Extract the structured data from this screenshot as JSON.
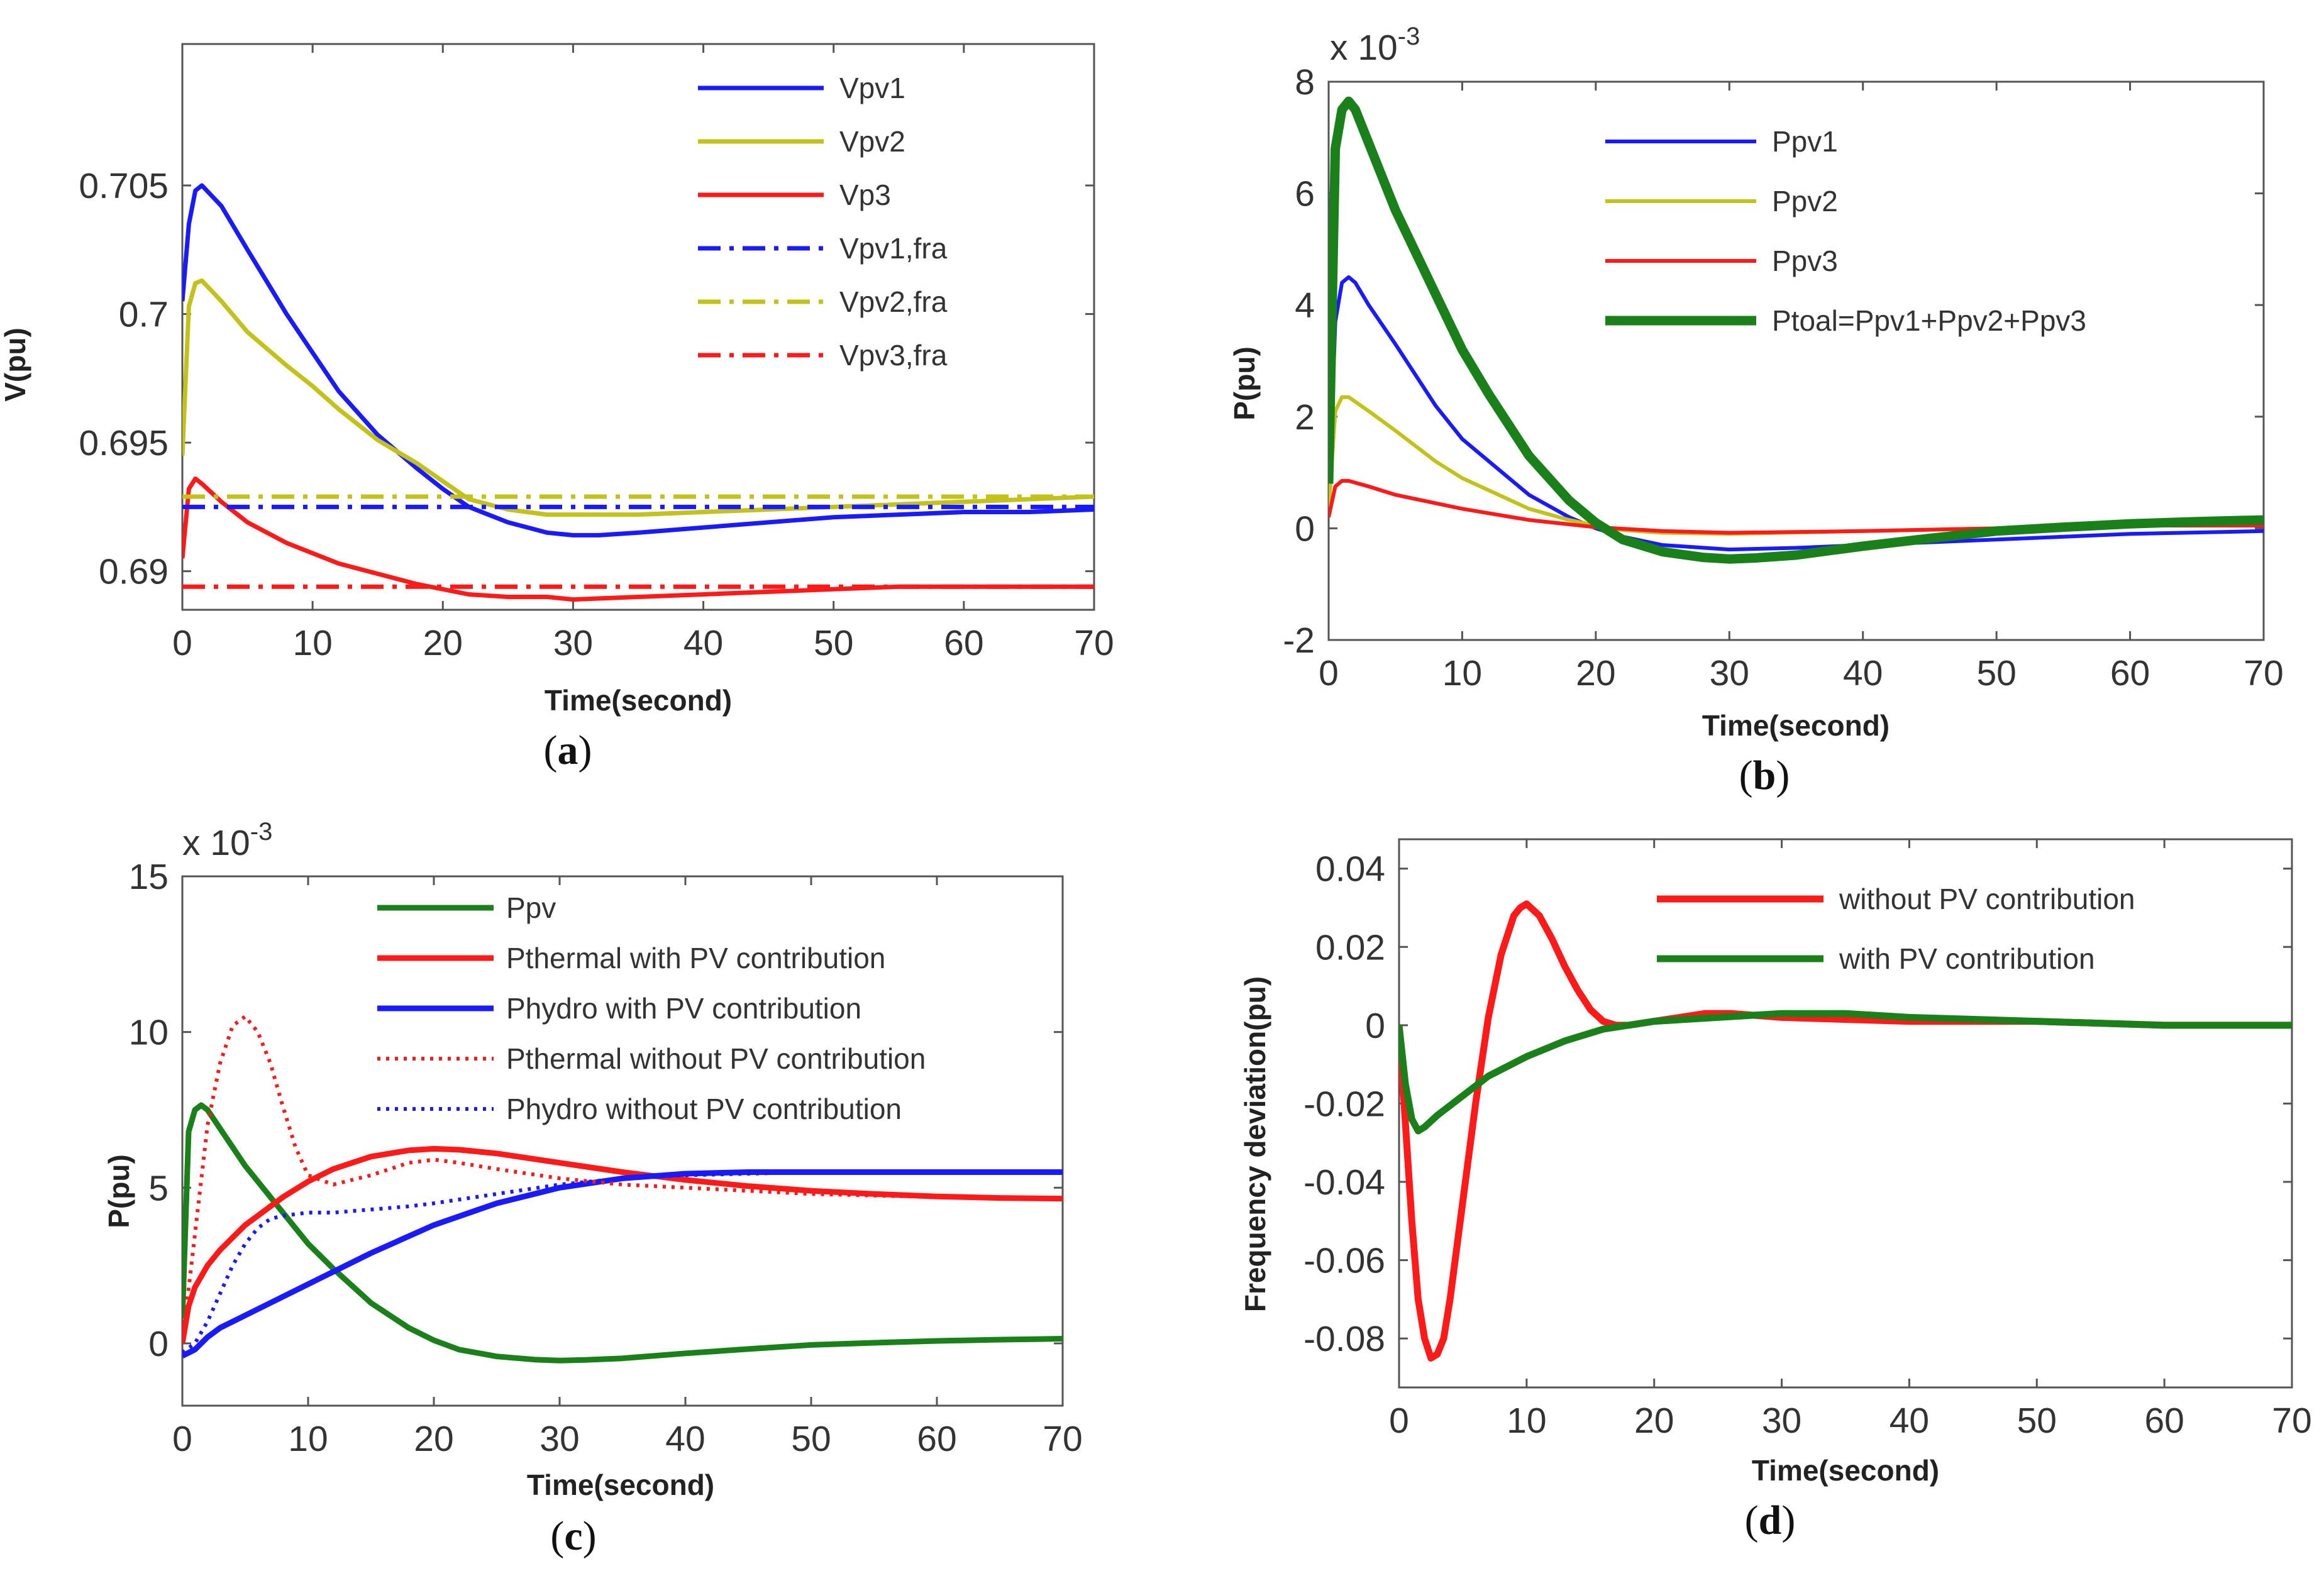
{
  "colors": {
    "blue": "#1a1aff",
    "yellow": "#c2c21a",
    "red": "#ff1a1a",
    "green": "#1a801a"
  },
  "chart_data": [
    {
      "id": "a",
      "type": "line",
      "caption": {
        "pre": "(",
        "letter": "a",
        "post": ")"
      },
      "xlabel": "Time(second)",
      "ylabel": "V(pu)",
      "xlim": [
        0,
        70
      ],
      "ylim": [
        0.6885,
        0.7105
      ],
      "exponent": "",
      "xticks": [
        "0",
        "10",
        "20",
        "30",
        "40",
        "50",
        "60",
        "70"
      ],
      "yticks": [
        {
          "v": 0.69,
          "label": "0.69"
        },
        {
          "v": 0.695,
          "label": "0.695"
        },
        {
          "v": 0.7,
          "label": "0.7"
        },
        {
          "v": 0.705,
          "label": "0.705"
        }
      ],
      "series": [
        {
          "name": "Vpv1",
          "color": "#1a1aff",
          "style": "solid",
          "width": 7,
          "x": [
            0,
            0.5,
            1,
            1.5,
            3,
            5,
            8,
            10,
            12,
            15,
            18,
            20,
            22,
            25,
            28,
            30,
            32,
            35,
            40,
            45,
            50,
            55,
            60,
            65,
            70
          ],
          "y": [
            0.7005,
            0.7035,
            0.7048,
            0.705,
            0.7042,
            0.7025,
            0.7,
            0.6985,
            0.697,
            0.6953,
            0.694,
            0.6932,
            0.6925,
            0.6919,
            0.6915,
            0.6914,
            0.6914,
            0.6915,
            0.6917,
            0.6919,
            0.6921,
            0.6922,
            0.6923,
            0.6923,
            0.6924
          ]
        },
        {
          "name": "Vpv2",
          "color": "#c2c21a",
          "style": "solid",
          "width": 7,
          "x": [
            0,
            0.5,
            1,
            1.5,
            3,
            5,
            8,
            10,
            12,
            15,
            18,
            20,
            22,
            25,
            28,
            30,
            35,
            40,
            45,
            50,
            55,
            60,
            65,
            70
          ],
          "y": [
            0.6945,
            0.7003,
            0.7012,
            0.7013,
            0.7005,
            0.6993,
            0.698,
            0.6972,
            0.6963,
            0.6951,
            0.6942,
            0.6935,
            0.6928,
            0.6924,
            0.6922,
            0.6922,
            0.6922,
            0.6923,
            0.6924,
            0.6925,
            0.6926,
            0.6927,
            0.6928,
            0.6929
          ]
        },
        {
          "name": "Vp3",
          "color": "#ff1a1a",
          "style": "solid",
          "width": 7,
          "x": [
            0,
            0.5,
            1,
            1.5,
            3,
            5,
            8,
            10,
            12,
            15,
            18,
            20,
            22,
            25,
            28,
            30,
            35,
            40,
            45,
            50,
            55,
            60,
            65,
            70
          ],
          "y": [
            0.6905,
            0.6932,
            0.6936,
            0.6934,
            0.6927,
            0.6919,
            0.6911,
            0.6907,
            0.6903,
            0.6899,
            0.6895,
            0.6893,
            0.6891,
            0.689,
            0.689,
            0.6889,
            0.689,
            0.6891,
            0.6892,
            0.6893,
            0.6894,
            0.6894,
            0.6894,
            0.6894
          ]
        },
        {
          "name": "Vpv1,fra",
          "color": "#1a1aff",
          "style": "dashdot",
          "width": 7,
          "x": [
            0,
            70
          ],
          "y": [
            0.6925,
            0.6925
          ]
        },
        {
          "name": "Vpv2,fra",
          "color": "#c2c21a",
          "style": "dashdot",
          "width": 7,
          "x": [
            0,
            70
          ],
          "y": [
            0.6929,
            0.6929
          ]
        },
        {
          "name": "Vpv3,fra",
          "color": "#ff1a1a",
          "style": "dashdot",
          "width": 7,
          "x": [
            0,
            70
          ],
          "y": [
            0.6894,
            0.6894
          ]
        }
      ]
    },
    {
      "id": "b",
      "type": "line",
      "caption": {
        "pre": "(",
        "letter": "b",
        "post": ")"
      },
      "xlabel": "Time(second)",
      "ylabel": "P(pu)",
      "xlim": [
        0,
        70
      ],
      "ylim": [
        -2,
        8
      ],
      "exponent": "x 10-3",
      "xticks": [
        "0",
        "10",
        "20",
        "30",
        "40",
        "50",
        "60",
        "70"
      ],
      "yticks": [
        {
          "v": -2,
          "label": "-2"
        },
        {
          "v": 0,
          "label": "0"
        },
        {
          "v": 2,
          "label": "2"
        },
        {
          "v": 4,
          "label": "4"
        },
        {
          "v": 6,
          "label": "6"
        },
        {
          "v": 8,
          "label": "8"
        }
      ],
      "series": [
        {
          "name": "Ppv1",
          "color": "#1a1aff",
          "style": "solid",
          "width": 6,
          "x": [
            0,
            0.5,
            1,
            1.5,
            2,
            3,
            5,
            8,
            10,
            15,
            18,
            20,
            22,
            25,
            30,
            35,
            40,
            50,
            60,
            70
          ],
          "y": [
            0.3,
            3.7,
            4.4,
            4.5,
            4.4,
            4,
            3.3,
            2.2,
            1.6,
            0.6,
            0.2,
            0,
            -0.15,
            -0.3,
            -0.38,
            -0.35,
            -0.3,
            -0.2,
            -0.1,
            -0.05
          ]
        },
        {
          "name": "Ppv2",
          "color": "#c2c21a",
          "style": "solid",
          "width": 6,
          "x": [
            0,
            0.5,
            1,
            1.5,
            3,
            5,
            8,
            10,
            15,
            18,
            20,
            22,
            25,
            30,
            40,
            50,
            60,
            70
          ],
          "y": [
            0.3,
            2.1,
            2.35,
            2.35,
            2.1,
            1.75,
            1.2,
            0.9,
            0.35,
            0.15,
            0.05,
            -0.03,
            -0.08,
            -0.1,
            -0.05,
            0,
            0.05,
            0.1
          ]
        },
        {
          "name": "Ppv3",
          "color": "#ff1a1a",
          "style": "solid",
          "width": 6,
          "x": [
            0,
            0.5,
            1,
            1.5,
            3,
            5,
            8,
            10,
            15,
            20,
            25,
            30,
            40,
            50,
            60,
            70
          ],
          "y": [
            0.2,
            0.75,
            0.85,
            0.85,
            0.75,
            0.6,
            0.45,
            0.35,
            0.15,
            0.02,
            -0.05,
            -0.08,
            -0.05,
            0,
            0.05,
            0.05
          ]
        },
        {
          "name": "Ptoal=Ppv1+Ppv2+Ppv3",
          "color": "#1a801a",
          "style": "solid",
          "width": 15,
          "x": [
            0,
            0.5,
            1,
            1.5,
            2,
            3,
            5,
            8,
            10,
            12,
            15,
            18,
            20,
            22,
            25,
            28,
            30,
            32,
            35,
            40,
            45,
            50,
            55,
            60,
            65,
            70
          ],
          "y": [
            0.8,
            6.8,
            7.5,
            7.65,
            7.5,
            6.9,
            5.7,
            4.2,
            3.2,
            2.4,
            1.3,
            0.5,
            0.1,
            -0.2,
            -0.42,
            -0.52,
            -0.55,
            -0.53,
            -0.48,
            -0.32,
            -0.18,
            -0.05,
            0.02,
            0.08,
            0.12,
            0.15
          ]
        }
      ]
    },
    {
      "id": "c",
      "type": "line",
      "caption": {
        "pre": "(",
        "letter": "c",
        "post": ")"
      },
      "xlabel": "Time(second)",
      "ylabel": "P(pu)",
      "xlim": [
        0,
        70
      ],
      "ylim": [
        -2,
        15
      ],
      "exponent": "x 10-3",
      "xticks": [
        "0",
        "10",
        "20",
        "30",
        "40",
        "50",
        "60",
        "70"
      ],
      "yticks": [
        {
          "v": 0,
          "label": "0"
        },
        {
          "v": 5,
          "label": "5"
        },
        {
          "v": 10,
          "label": "10"
        },
        {
          "v": 15,
          "label": "15"
        }
      ],
      "series": [
        {
          "name": "Ppv",
          "color": "#1a801a",
          "style": "solid",
          "width": 9,
          "x": [
            0,
            0.5,
            1,
            1.5,
            2,
            3,
            5,
            8,
            10,
            12,
            15,
            18,
            20,
            22,
            25,
            28,
            30,
            32,
            35,
            40,
            45,
            50,
            55,
            60,
            65,
            70
          ],
          "y": [
            0.8,
            6.8,
            7.5,
            7.65,
            7.5,
            6.9,
            5.7,
            4.2,
            3.2,
            2.4,
            1.3,
            0.5,
            0.1,
            -0.2,
            -0.42,
            -0.52,
            -0.55,
            -0.53,
            -0.48,
            -0.32,
            -0.18,
            -0.05,
            0.02,
            0.08,
            0.12,
            0.15
          ]
        },
        {
          "name": "Pthermal with PV contribution",
          "color": "#ff1a1a",
          "style": "solid",
          "width": 9,
          "x": [
            0,
            0.5,
            1,
            2,
            3,
            5,
            8,
            10,
            12,
            15,
            18,
            20,
            22,
            25,
            30,
            35,
            40,
            45,
            50,
            55,
            60,
            65,
            70
          ],
          "y": [
            0,
            1.2,
            1.8,
            2.5,
            3,
            3.8,
            4.7,
            5.2,
            5.6,
            6,
            6.2,
            6.25,
            6.22,
            6.1,
            5.8,
            5.5,
            5.25,
            5.05,
            4.9,
            4.8,
            4.72,
            4.67,
            4.65
          ]
        },
        {
          "name": "Phydro with PV contribution",
          "color": "#1a1aff",
          "style": "solid",
          "width": 9,
          "x": [
            0,
            0.5,
            1,
            2,
            3,
            5,
            8,
            10,
            15,
            20,
            25,
            30,
            35,
            40,
            45,
            50,
            55,
            60,
            65,
            70
          ],
          "y": [
            -0.4,
            -0.3,
            -0.2,
            0.2,
            0.5,
            0.9,
            1.5,
            1.9,
            2.9,
            3.8,
            4.5,
            5,
            5.3,
            5.45,
            5.5,
            5.5,
            5.5,
            5.5,
            5.5,
            5.5
          ]
        },
        {
          "name": "Pthermal without PV contribution",
          "color": "#ff1a1a",
          "style": "dotted",
          "width": 6,
          "x": [
            0,
            1,
            2,
            3,
            4,
            5,
            6,
            7,
            8,
            9,
            10,
            12,
            15,
            18,
            20,
            22,
            25,
            30,
            35,
            40,
            45,
            50,
            55,
            60,
            65,
            70
          ],
          "y": [
            0,
            3.5,
            7,
            9,
            10.2,
            10.5,
            10,
            9,
            7.6,
            6.3,
            5.4,
            5.1,
            5.4,
            5.8,
            5.9,
            5.8,
            5.6,
            5.3,
            5.1,
            5,
            4.9,
            4.8,
            4.75,
            4.7,
            4.68,
            4.65
          ]
        },
        {
          "name": "Phydro without PV contribution",
          "color": "#1a1aff",
          "style": "dotted",
          "width": 6,
          "x": [
            0,
            1,
            2,
            3,
            4,
            5,
            6,
            7,
            8,
            10,
            12,
            15,
            18,
            20,
            25,
            30,
            35,
            40,
            45,
            50,
            55,
            60,
            65,
            70
          ],
          "y": [
            -0.3,
            0,
            0.7,
            1.6,
            2.5,
            3.2,
            3.7,
            4,
            4.1,
            4.2,
            4.2,
            4.3,
            4.4,
            4.5,
            4.8,
            5.1,
            5.3,
            5.4,
            5.45,
            5.5,
            5.5,
            5.5,
            5.5,
            5.5
          ]
        }
      ]
    },
    {
      "id": "d",
      "type": "line",
      "caption": {
        "pre": "(",
        "letter": "d",
        "post": ")"
      },
      "xlabel": "Time(second)",
      "ylabel": "Frequency deviation(pu)",
      "xlim": [
        0,
        70
      ],
      "ylim": [
        -0.0925,
        0.0475
      ],
      "exponent": "",
      "xticks": [
        "0",
        "10",
        "20",
        "30",
        "40",
        "50",
        "60",
        "70"
      ],
      "yticks": [
        {
          "v": -0.08,
          "label": "-0.08"
        },
        {
          "v": -0.06,
          "label": "-0.06"
        },
        {
          "v": -0.04,
          "label": "-0.04"
        },
        {
          "v": -0.02,
          "label": "-0.02"
        },
        {
          "v": 0,
          "label": "0"
        },
        {
          "v": 0.02,
          "label": "0.02"
        },
        {
          "v": 0.04,
          "label": "0.04"
        }
      ],
      "series": [
        {
          "name": "without PV contribution",
          "color": "#ff1a1a",
          "style": "solid",
          "width": 11,
          "x": [
            0,
            0.5,
            1,
            1.5,
            2,
            2.5,
            3,
            3.5,
            4,
            5,
            6,
            7,
            8,
            9,
            9.5,
            10,
            11,
            12,
            13,
            14,
            15,
            16,
            17,
            18,
            20,
            22,
            24,
            26,
            30,
            40,
            50,
            60,
            70
          ],
          "y": [
            0,
            -0.025,
            -0.05,
            -0.07,
            -0.08,
            -0.085,
            -0.084,
            -0.08,
            -0.07,
            -0.045,
            -0.02,
            0.002,
            0.018,
            0.028,
            0.03,
            0.031,
            0.028,
            0.022,
            0.015,
            0.009,
            0.004,
            0.001,
            0,
            0,
            0.001,
            0.002,
            0.003,
            0.003,
            0.002,
            0.001,
            0.001,
            0,
            0
          ]
        },
        {
          "name": "with PV contribution",
          "color": "#1a801a",
          "style": "solid",
          "width": 11,
          "x": [
            0,
            0.5,
            1,
            1.5,
            2,
            3,
            5,
            7,
            10,
            13,
            16,
            20,
            25,
            30,
            35,
            40,
            50,
            60,
            70
          ],
          "y": [
            0,
            -0.015,
            -0.024,
            -0.027,
            -0.026,
            -0.023,
            -0.018,
            -0.013,
            -0.008,
            -0.004,
            -0.001,
            0.001,
            0.002,
            0.003,
            0.003,
            0.002,
            0.001,
            0,
            0
          ]
        }
      ]
    }
  ]
}
